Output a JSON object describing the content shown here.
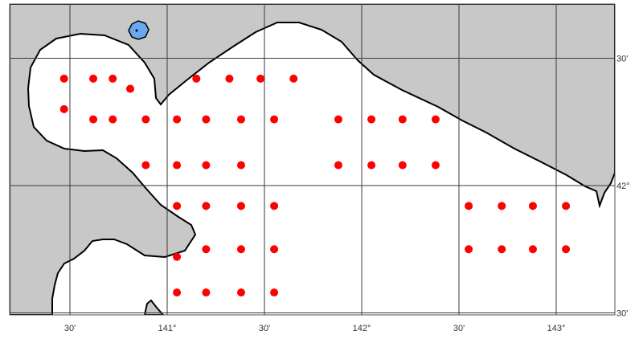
{
  "map": {
    "land_color": "#c8c8c8",
    "sea_color": "#ffffff",
    "coast_color": "#000000",
    "grid_color": "#3a3a3a",
    "station_color": "#ff0000",
    "lake_color": "#6aa8f0",
    "station_marker": "filled-circle",
    "lake_icon": "lake-icon"
  },
  "axes": {
    "lon_ticks": [
      {
        "label": "30'",
        "lon": 140.5
      },
      {
        "label": "141°",
        "lon": 141.0
      },
      {
        "label": "30'",
        "lon": 141.5
      },
      {
        "label": "142°",
        "lon": 142.0
      },
      {
        "label": "30'",
        "lon": 142.5
      },
      {
        "label": "143°",
        "lon": 143.0
      }
    ],
    "lat_ticks": [
      {
        "label": "30'",
        "lat": 42.5
      },
      {
        "label": "42°",
        "lat": 42.0
      },
      {
        "label": "30'",
        "lat": 41.5
      }
    ]
  },
  "stations": [
    {
      "lon": 140.47,
      "lat": 42.42
    },
    {
      "lon": 140.62,
      "lat": 42.42
    },
    {
      "lon": 140.72,
      "lat": 42.42
    },
    {
      "lon": 140.81,
      "lat": 42.38
    },
    {
      "lon": 141.15,
      "lat": 42.42
    },
    {
      "lon": 141.32,
      "lat": 42.42
    },
    {
      "lon": 141.48,
      "lat": 42.42
    },
    {
      "lon": 141.65,
      "lat": 42.42
    },
    {
      "lon": 140.47,
      "lat": 42.3
    },
    {
      "lon": 140.62,
      "lat": 42.26
    },
    {
      "lon": 140.72,
      "lat": 42.26
    },
    {
      "lon": 140.89,
      "lat": 42.26
    },
    {
      "lon": 141.05,
      "lat": 42.26
    },
    {
      "lon": 141.2,
      "lat": 42.26
    },
    {
      "lon": 141.38,
      "lat": 42.26
    },
    {
      "lon": 141.55,
      "lat": 42.26
    },
    {
      "lon": 141.88,
      "lat": 42.26
    },
    {
      "lon": 142.05,
      "lat": 42.26
    },
    {
      "lon": 142.21,
      "lat": 42.26
    },
    {
      "lon": 142.38,
      "lat": 42.26
    },
    {
      "lon": 140.89,
      "lat": 42.08
    },
    {
      "lon": 141.05,
      "lat": 42.08
    },
    {
      "lon": 141.2,
      "lat": 42.08
    },
    {
      "lon": 141.38,
      "lat": 42.08
    },
    {
      "lon": 141.88,
      "lat": 42.08
    },
    {
      "lon": 142.05,
      "lat": 42.08
    },
    {
      "lon": 142.21,
      "lat": 42.08
    },
    {
      "lon": 142.38,
      "lat": 42.08
    },
    {
      "lon": 141.05,
      "lat": 41.92
    },
    {
      "lon": 141.2,
      "lat": 41.92
    },
    {
      "lon": 141.38,
      "lat": 41.92
    },
    {
      "lon": 141.55,
      "lat": 41.92
    },
    {
      "lon": 142.55,
      "lat": 41.92
    },
    {
      "lon": 142.72,
      "lat": 41.92
    },
    {
      "lon": 142.88,
      "lat": 41.92
    },
    {
      "lon": 143.05,
      "lat": 41.92
    },
    {
      "lon": 141.05,
      "lat": 41.72
    },
    {
      "lon": 141.2,
      "lat": 41.75
    },
    {
      "lon": 141.38,
      "lat": 41.75
    },
    {
      "lon": 141.55,
      "lat": 41.75
    },
    {
      "lon": 142.55,
      "lat": 41.75
    },
    {
      "lon": 142.72,
      "lat": 41.75
    },
    {
      "lon": 142.88,
      "lat": 41.75
    },
    {
      "lon": 143.05,
      "lat": 41.75
    },
    {
      "lon": 141.05,
      "lat": 41.58
    },
    {
      "lon": 141.2,
      "lat": 41.58
    },
    {
      "lon": 141.38,
      "lat": 41.58
    },
    {
      "lon": 141.55,
      "lat": 41.58
    }
  ]
}
